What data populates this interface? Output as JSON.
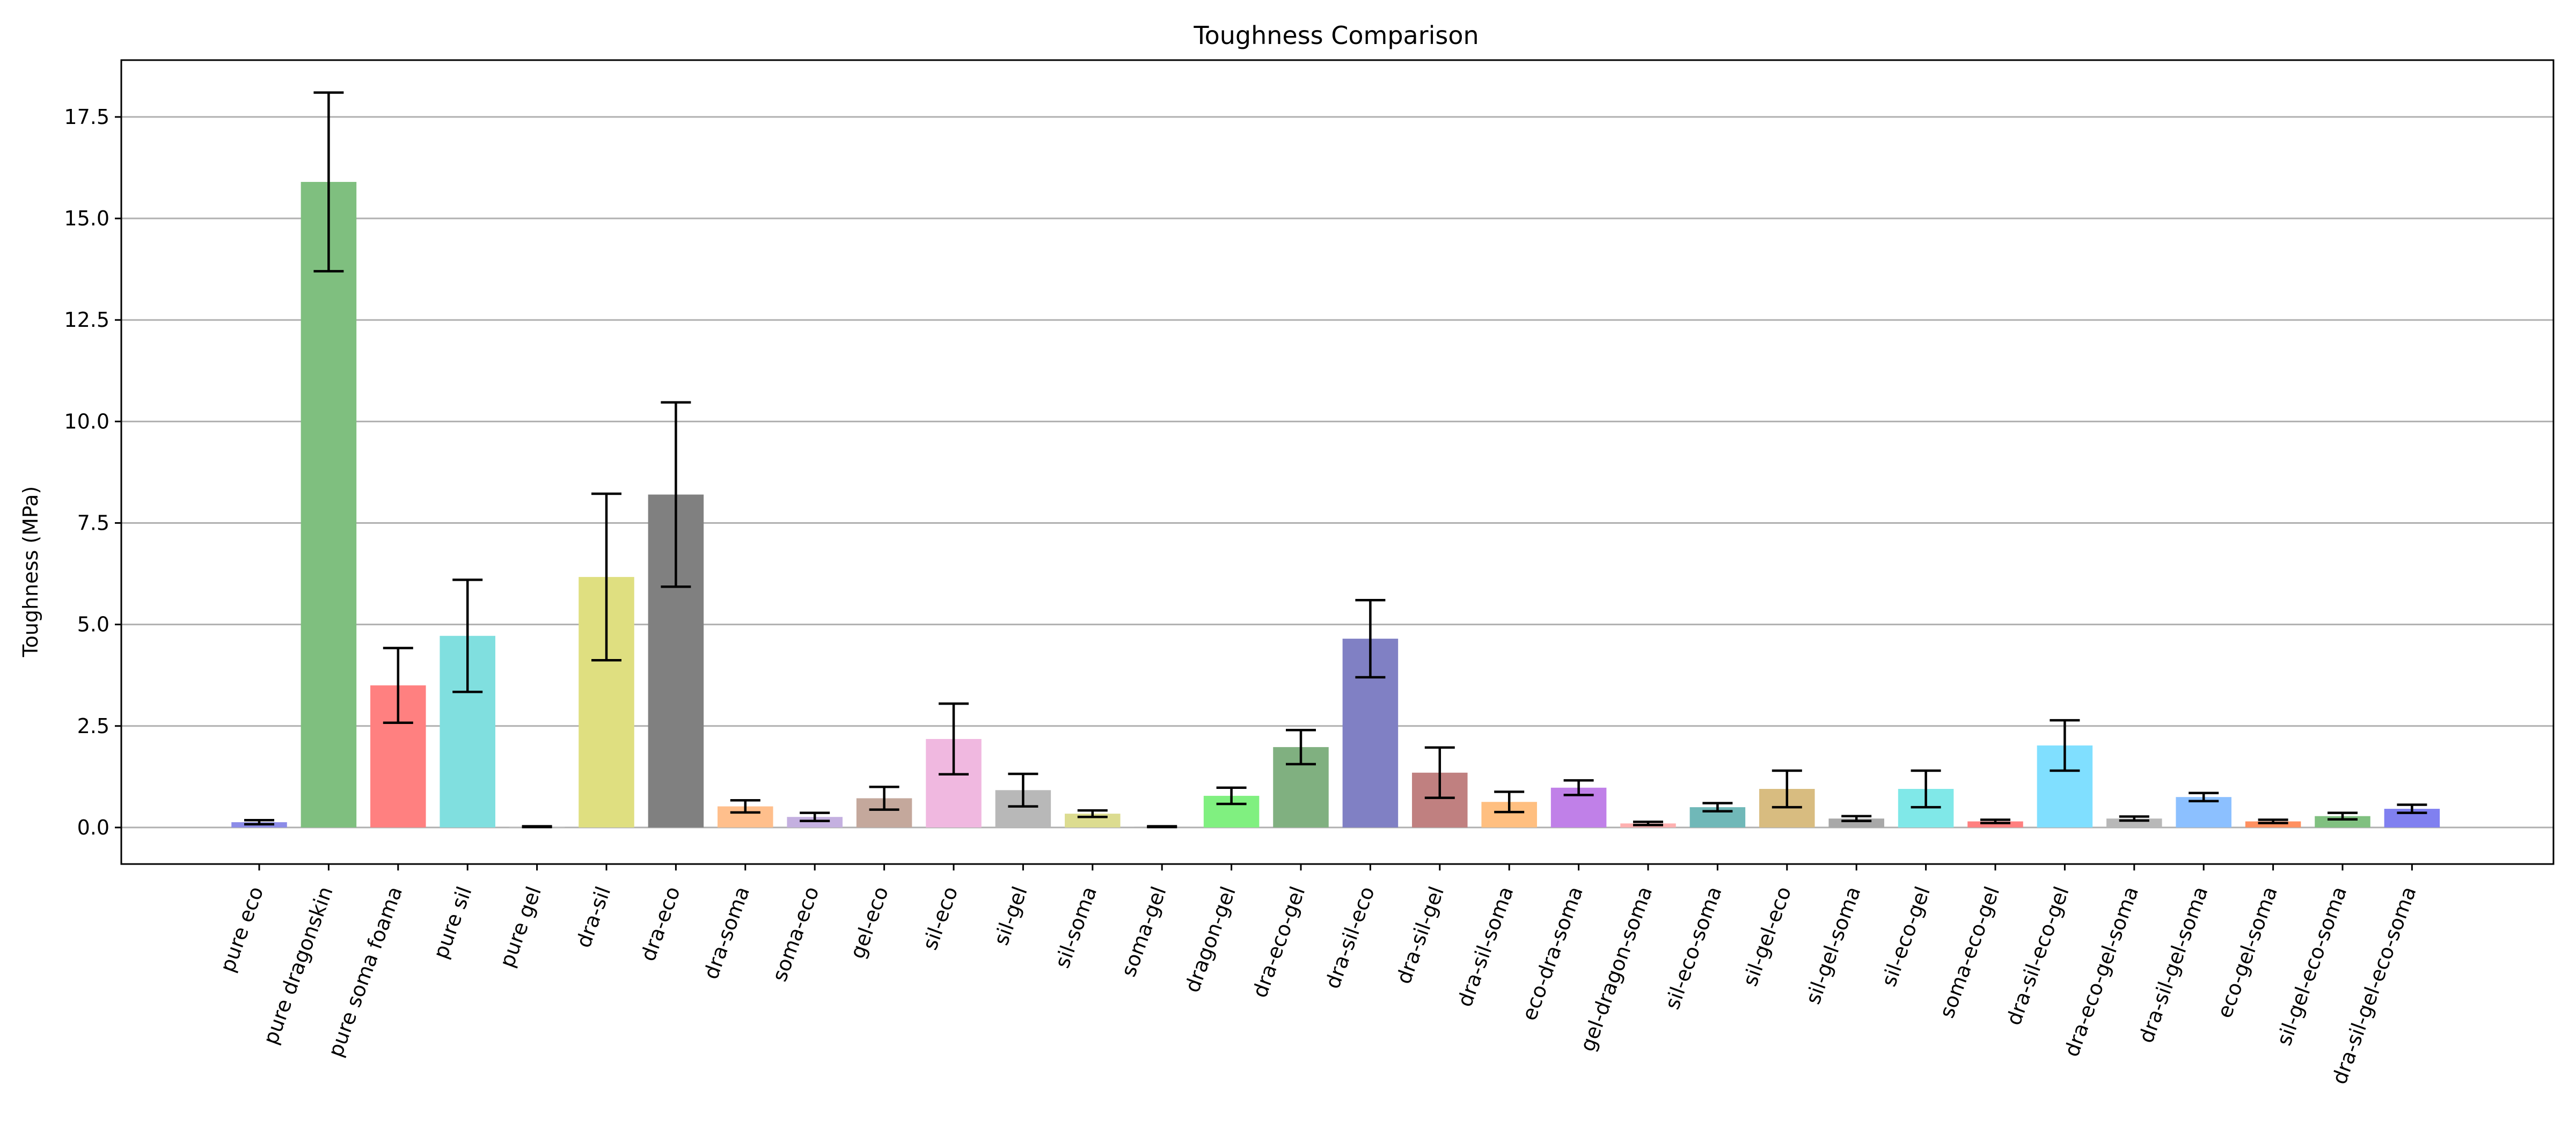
{
  "chart_data": {
    "type": "bar",
    "title": "Toughness Comparison",
    "xlabel": "",
    "ylabel": "Toughness (MPa)",
    "ylim": [
      -0.9,
      18.9
    ],
    "yticks": [
      0.0,
      2.5,
      5.0,
      7.5,
      10.0,
      12.5,
      15.0,
      17.5
    ],
    "ytick_labels": [
      "0.0",
      "2.5",
      "5.0",
      "7.5",
      "10.0",
      "12.5",
      "15.0",
      "17.5"
    ],
    "grid": "horizontal",
    "categories": [
      "pure eco",
      "pure dragonskin",
      "pure soma foama",
      "pure sil",
      "pure gel",
      "dra-sil",
      "dra-eco",
      "dra-soma",
      "soma-eco",
      "gel-eco",
      "sil-eco",
      "sil-gel",
      "sil-soma",
      "soma-gel",
      "dragon-gel",
      "dra-eco-gel",
      "dra-sil-eco",
      "dra-sil-gel",
      "dra-sil-soma",
      "eco-dra-soma",
      "gel-dragon-soma",
      "sil-eco-soma",
      "sil-gel-eco",
      "sil-gel-soma",
      "sil-eco-gel",
      "soma-eco-gel",
      "dra-sil-eco-gel",
      "dra-eco-gel-soma",
      "dra-sil-gel-soma",
      "eco-gel-soma",
      "sil-gel-eco-soma",
      "dra-sil-gel-eco-soma"
    ],
    "values": [
      0.13,
      15.9,
      3.5,
      4.72,
      0.02,
      6.17,
      8.2,
      0.52,
      0.26,
      0.72,
      2.18,
      0.92,
      0.34,
      0.02,
      0.78,
      1.98,
      4.65,
      1.35,
      0.63,
      0.98,
      0.1,
      0.5,
      0.95,
      0.22,
      0.95,
      0.15,
      2.02,
      0.22,
      0.75,
      0.15,
      0.28,
      0.46
    ],
    "errors": [
      0.05,
      2.2,
      0.92,
      1.38,
      0.01,
      2.05,
      2.27,
      0.15,
      0.1,
      0.28,
      0.87,
      0.4,
      0.08,
      0.01,
      0.2,
      0.42,
      0.95,
      0.62,
      0.25,
      0.18,
      0.04,
      0.1,
      0.45,
      0.06,
      0.45,
      0.04,
      0.62,
      0.05,
      0.1,
      0.04,
      0.08,
      0.1
    ],
    "colors": [
      "#8c8ce8",
      "#7fbf7f",
      "#ff8080",
      "#80dfdf",
      "#c0c0c0",
      "#dfdf80",
      "#808080",
      "#ffbf8c",
      "#c4b0e0",
      "#c4a89c",
      "#f0b8e0",
      "#b8b8b8",
      "#dcdc90",
      "#b0b0b0",
      "#80f080",
      "#80b080",
      "#8080c4",
      "#c08080",
      "#ffbf80",
      "#c080e8",
      "#ffb0b0",
      "#70b8b8",
      "#d8bc80",
      "#a8a8a8",
      "#80e8e8",
      "#ff8080",
      "#80dfff",
      "#b8b8b8",
      "#8cc0ff",
      "#ff9060",
      "#80c080",
      "#8080f0"
    ]
  }
}
